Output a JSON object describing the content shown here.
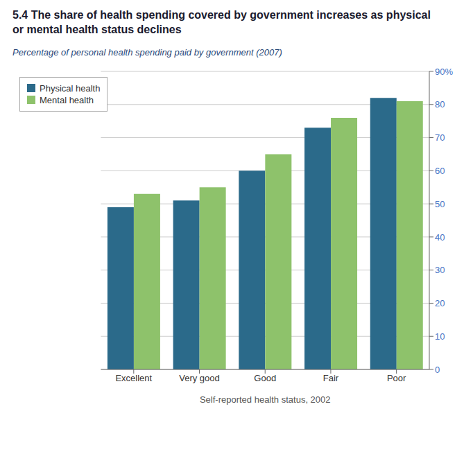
{
  "chart_data": {
    "type": "bar",
    "title": "5.4 The share of health spending covered by government increases as physical\nor mental health status declines",
    "subtitle": "Percentage of personal health spending paid by government (2007)",
    "x_label": "Self-reported health status, 2002",
    "categories": [
      "Excellent",
      "Very good",
      "Good",
      "Fair",
      "Poor"
    ],
    "series": [
      {
        "name": "Physical health",
        "color": "#2B6A8A",
        "values": [
          49,
          51,
          60,
          73,
          82
        ]
      },
      {
        "name": "Mental health",
        "color": "#8EC26B",
        "values": [
          53,
          55,
          65,
          76,
          81
        ]
      }
    ],
    "ylim": [
      0,
      90
    ],
    "yticks": [
      0,
      10,
      20,
      30,
      40,
      50,
      60,
      70,
      80,
      {
        "value": 90,
        "label": "90%"
      }
    ],
    "grid": true,
    "legend": "upper left"
  }
}
